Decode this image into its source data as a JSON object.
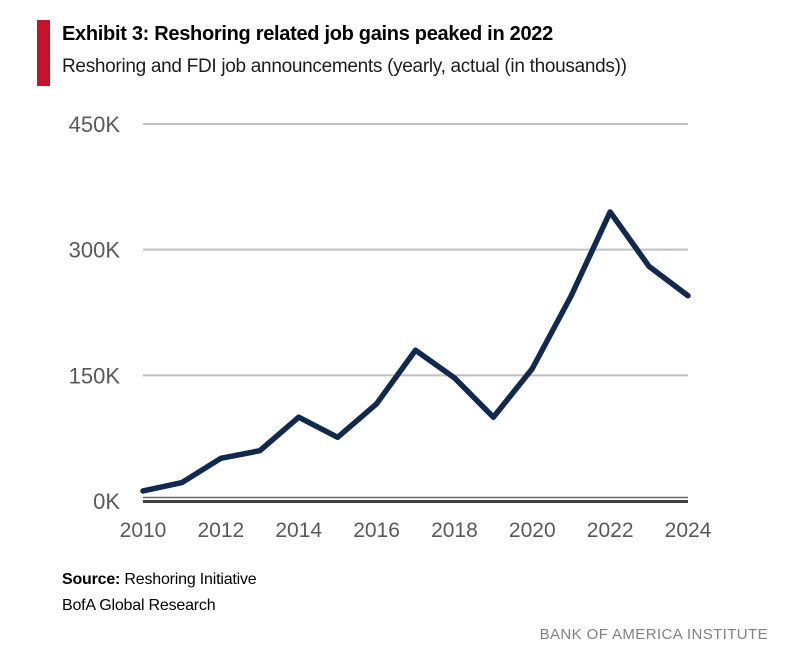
{
  "header": {
    "title": "Exhibit 3: Reshoring related job gains peaked in 2022",
    "subtitle": "Reshoring and FDI job announcements (yearly, actual (in thousands))",
    "accent_color": "#c4122f"
  },
  "chart_data": {
    "type": "line",
    "title": "Exhibit 3: Reshoring related job gains peaked in 2022",
    "subtitle": "Reshoring and FDI job announcements (yearly, actual (in thousands))",
    "x": [
      2010,
      2011,
      2012,
      2013,
      2014,
      2015,
      2016,
      2017,
      2018,
      2019,
      2020,
      2021,
      2022,
      2023,
      2024
    ],
    "values": [
      12,
      22,
      51,
      60,
      100,
      76,
      116,
      180,
      147,
      100,
      158,
      245,
      345,
      280,
      245
    ],
    "unit": "thousands of jobs",
    "series_name": "Reshoring and FDI job announcements",
    "xlabel": "",
    "ylabel": "",
    "ylim": [
      0,
      450
    ],
    "x_axis_range": [
      2010,
      2024
    ],
    "y_tick_labels": [
      "0K",
      "150K",
      "300K",
      "450K"
    ],
    "y_tick_values": [
      0,
      150,
      300,
      450
    ],
    "x_tick_labels": [
      "2010",
      "2012",
      "2014",
      "2016",
      "2018",
      "2020",
      "2022",
      "2024"
    ],
    "x_tick_values": [
      2010,
      2012,
      2014,
      2016,
      2018,
      2020,
      2022,
      2024
    ],
    "grid": "horizontal",
    "legend": "none",
    "line_color": "#12294f",
    "grid_color": "#bfbfbf",
    "axis_color": "#404040",
    "tick_label_color": "#595959"
  },
  "footer": {
    "source_label": "Source:",
    "source_value": " Reshoring Initiative",
    "source_line2": "BofA Global Research",
    "brand": "BANK OF AMERICA INSTITUTE"
  }
}
